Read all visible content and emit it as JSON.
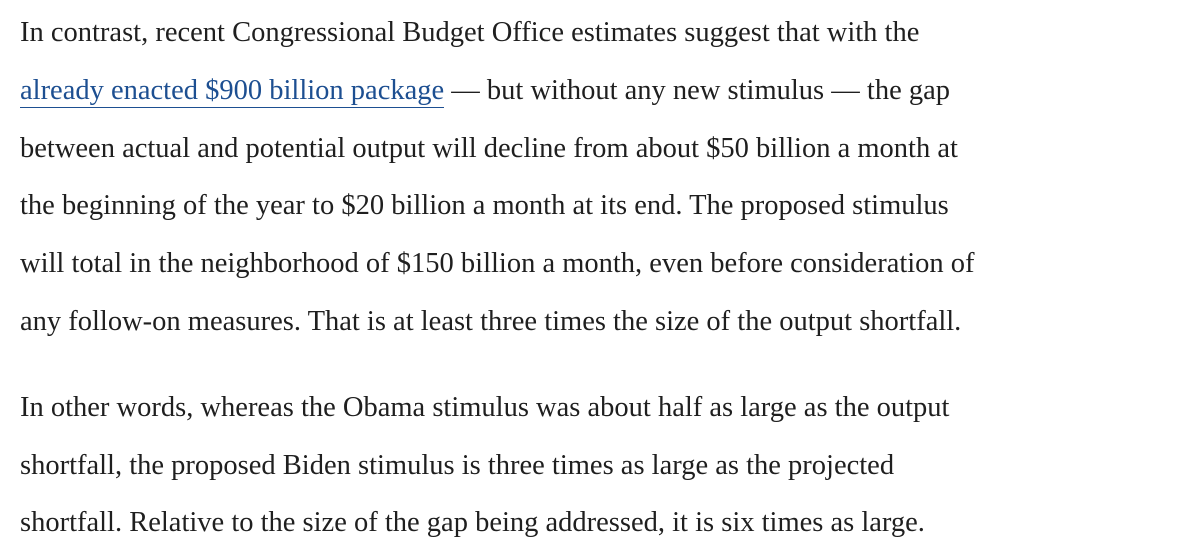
{
  "article": {
    "paragraphs": [
      {
        "lines": [
          {
            "text": "In contrast, recent Congressional Budget Office estimates suggest that with the"
          },
          {
            "link": "already enacted $900 billion package",
            "after": " — but without any new stimulus — the gap"
          },
          {
            "text": "between actual and potential output will decline from about $50 billion a month at"
          },
          {
            "text": "the beginning of the year to $20 billion a month at its end. The proposed stimulus"
          },
          {
            "text": "will total in the neighborhood of $150 billion a month, even before consideration of"
          },
          {
            "text": "any follow-on measures. That is at least three times the size of the output shortfall."
          }
        ]
      },
      {
        "lines": [
          {
            "text": "In other words, whereas the Obama stimulus was about half as large as the output"
          },
          {
            "text": "shortfall, the proposed Biden stimulus is three times as large as the projected"
          },
          {
            "text": "shortfall. Relative to the size of the gap being addressed, it is six times as large."
          }
        ]
      }
    ]
  },
  "colors": {
    "text": "#1f1f1f",
    "link": "#1d4f91",
    "background": "#ffffff"
  }
}
